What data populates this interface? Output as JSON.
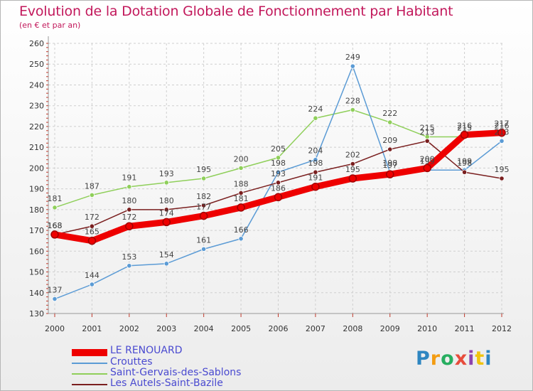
{
  "chart_data": {
    "type": "line",
    "title": "Evolution de la Dotation Globale de Fonctionnement par Habitant",
    "subtitle": "(en € et par an)",
    "xlabel": "",
    "ylabel": "",
    "x": [
      "2000",
      "2001",
      "2002",
      "2003",
      "2004",
      "2005",
      "2006",
      "2007",
      "2008",
      "2009",
      "2010",
      "2011",
      "2012"
    ],
    "ylim": [
      130,
      260
    ],
    "yticks": [
      "130",
      "140",
      "150",
      "160",
      "170",
      "180",
      "190",
      "200",
      "210",
      "220",
      "230",
      "240",
      "250",
      "260"
    ],
    "grid": true,
    "series": [
      {
        "name": "Saint-Gervais-des-Sablons",
        "color": "#8fcf5a",
        "values": [
          181,
          187,
          191,
          193,
          195,
          200,
          205,
          224,
          228,
          222,
          215,
          215,
          216
        ]
      },
      {
        "name": "Crouttes",
        "color": "#5b9bd5",
        "values": [
          137,
          144,
          153,
          154,
          161,
          166,
          198,
          204,
          249,
          198,
          199,
          199,
          213
        ]
      },
      {
        "name": "Les Autels-Saint-Bazile",
        "color": "#7a1f1f",
        "values": [
          168,
          172,
          180,
          180,
          182,
          188,
          193,
          198,
          202,
          209,
          213,
          198,
          195
        ]
      },
      {
        "name": "LE RENOUARD",
        "color": "#ee0000",
        "values": [
          168,
          165,
          172,
          174,
          177,
          181,
          186,
          191,
          195,
          197,
          200,
          216,
          217
        ]
      }
    ],
    "legend": [
      {
        "name": "LE RENOUARD",
        "color": "#ee0000"
      },
      {
        "name": "Crouttes",
        "color": "#5b9bd5"
      },
      {
        "name": "Saint-Gervais-des-Sablons",
        "color": "#8fcf5a"
      },
      {
        "name": "Les Autels-Saint-Bazile",
        "color": "#7a1f1f"
      }
    ]
  },
  "brand": {
    "letters": [
      "P",
      "r",
      "o",
      "x",
      "i",
      "t",
      "i"
    ],
    "colors": [
      "#2e86c1",
      "#f39c12",
      "#27ae60",
      "#e74c3c",
      "#8e44ad",
      "#f1c40f",
      "#2e86c1"
    ]
  }
}
